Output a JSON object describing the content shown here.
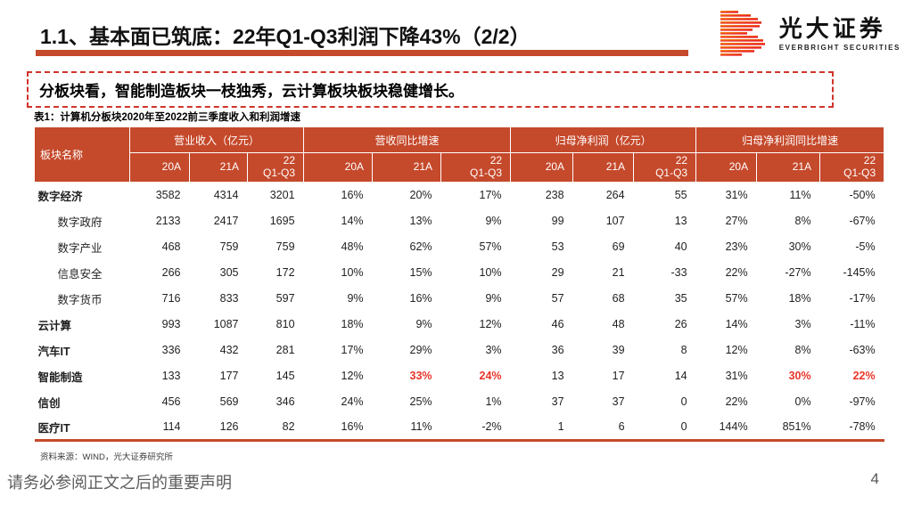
{
  "colors": {
    "accent": "#C5492B",
    "red_value": "#E8352A",
    "dashed_border": "#D0342C",
    "footer_text": "#5C5C5C"
  },
  "header": {
    "title": "1.1、基本面已筑底：22年Q1-Q3利润下降43%（2/2）",
    "logo": {
      "name_cn": "光大证券",
      "name_en": "EVERBRIGHT SECURITIES"
    }
  },
  "highlight": {
    "text": "分板块看，智能制造板块一枝独秀，云计算板块板块稳健增长。"
  },
  "table": {
    "caption": "表1：计算机分板块2020年至2022前三季度收入和利润增速",
    "name_header": "板块名称",
    "groups": [
      "营业收入（亿元）",
      "营收同比增速",
      "归母净利润（亿元）",
      "归母净利润同比增速"
    ],
    "subcols": [
      "20A",
      "21A",
      "22\nQ1-Q3"
    ],
    "rows": [
      {
        "name": "数字经济",
        "level": 0,
        "values": [
          "3582",
          "4314",
          "3201",
          "16%",
          "20%",
          "17%",
          "238",
          "264",
          "55",
          "31%",
          "11%",
          "-50%"
        ],
        "red": []
      },
      {
        "name": "数字政府",
        "level": 1,
        "values": [
          "2133",
          "2417",
          "1695",
          "14%",
          "13%",
          "9%",
          "99",
          "107",
          "13",
          "27%",
          "8%",
          "-67%"
        ],
        "red": []
      },
      {
        "name": "数字产业",
        "level": 1,
        "values": [
          "468",
          "759",
          "759",
          "48%",
          "62%",
          "57%",
          "53",
          "69",
          "40",
          "23%",
          "30%",
          "-5%"
        ],
        "red": []
      },
      {
        "name": "信息安全",
        "level": 1,
        "values": [
          "266",
          "305",
          "172",
          "10%",
          "15%",
          "10%",
          "29",
          "21",
          "-33",
          "22%",
          "-27%",
          "-145%"
        ],
        "red": []
      },
      {
        "name": "数字货币",
        "level": 1,
        "values": [
          "716",
          "833",
          "597",
          "9%",
          "16%",
          "9%",
          "57",
          "68",
          "35",
          "57%",
          "18%",
          "-17%"
        ],
        "red": []
      },
      {
        "name": "云计算",
        "level": 0,
        "values": [
          "993",
          "1087",
          "810",
          "18%",
          "9%",
          "12%",
          "46",
          "48",
          "26",
          "14%",
          "3%",
          "-11%"
        ],
        "red": []
      },
      {
        "name": "汽车IT",
        "level": 0,
        "values": [
          "336",
          "432",
          "281",
          "17%",
          "29%",
          "3%",
          "36",
          "39",
          "8",
          "12%",
          "8%",
          "-63%"
        ],
        "red": []
      },
      {
        "name": "智能制造",
        "level": 0,
        "values": [
          "133",
          "177",
          "145",
          "12%",
          "33%",
          "24%",
          "13",
          "17",
          "14",
          "31%",
          "30%",
          "22%"
        ],
        "red": [
          4,
          5,
          10,
          11
        ]
      },
      {
        "name": "信创",
        "level": 0,
        "values": [
          "456",
          "569",
          "346",
          "24%",
          "25%",
          "1%",
          "37",
          "37",
          "0",
          "22%",
          "0%",
          "-97%"
        ],
        "red": []
      },
      {
        "name": "医疗IT",
        "level": 0,
        "values": [
          "114",
          "126",
          "82",
          "16%",
          "11%",
          "-2%",
          "1",
          "6",
          "0",
          "144%",
          "851%",
          "-78%"
        ],
        "red": []
      }
    ],
    "source": "资料来源：WIND，光大证券研究所"
  },
  "footer": {
    "disclaimer": "请务必参阅正文之后的重要声明",
    "page_number": "4"
  }
}
